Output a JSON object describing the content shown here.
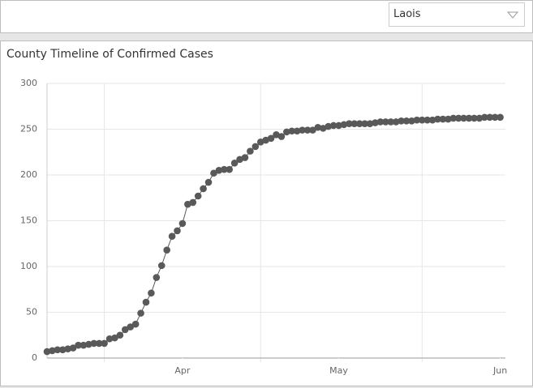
{
  "selector": {
    "value": "Laois"
  },
  "chart_data": {
    "type": "line",
    "title": "County Timeline of Confirmed Cases",
    "x": [
      0,
      1,
      2,
      3,
      4,
      5,
      6,
      7,
      8,
      9,
      10,
      11,
      12,
      13,
      14,
      15,
      16,
      17,
      18,
      19,
      20,
      21,
      22,
      23,
      24,
      25,
      26,
      27,
      28,
      29,
      30,
      31,
      32,
      33,
      34,
      35,
      36,
      37,
      38,
      39,
      40,
      41,
      42,
      43,
      44,
      45,
      46,
      47,
      48,
      49,
      50,
      51,
      52,
      53,
      54,
      55,
      56,
      57,
      58,
      59,
      60,
      61,
      62,
      63,
      64,
      65,
      66,
      67,
      68,
      69,
      70,
      71,
      72,
      73,
      74,
      75,
      76,
      77,
      78,
      79,
      80,
      81,
      82,
      83,
      84,
      85,
      86,
      87
    ],
    "series": [
      {
        "name": "Confirmed Cases",
        "color": "#595959",
        "values": [
          7,
          8,
          9,
          9,
          10,
          11,
          14,
          14,
          15,
          16,
          16,
          16,
          21,
          22,
          25,
          31,
          34,
          37,
          49,
          61,
          71,
          88,
          101,
          118,
          133,
          139,
          147,
          168,
          170,
          177,
          185,
          192,
          202,
          205,
          206,
          206,
          213,
          217,
          219,
          226,
          231,
          236,
          238,
          240,
          244,
          242,
          247,
          248,
          248,
          249,
          249,
          249,
          252,
          251,
          253,
          254,
          254,
          255,
          256,
          256,
          256,
          256,
          256,
          257,
          258,
          258,
          258,
          258,
          259,
          259,
          259,
          260,
          260,
          260,
          260,
          261,
          261,
          261,
          262,
          262,
          262,
          262,
          262,
          262,
          263,
          263,
          263,
          263
        ]
      }
    ],
    "xlim": [
      0,
      88
    ],
    "xticks": [
      {
        "value": 26,
        "label": "Apr"
      },
      {
        "value": 56,
        "label": "May"
      },
      {
        "value": 87,
        "label": "Jun"
      }
    ],
    "xgrid": [
      11,
      41,
      72
    ],
    "ylim": [
      0,
      300
    ],
    "yticks": [
      0,
      50,
      100,
      150,
      200,
      250,
      300
    ],
    "grid": true
  }
}
